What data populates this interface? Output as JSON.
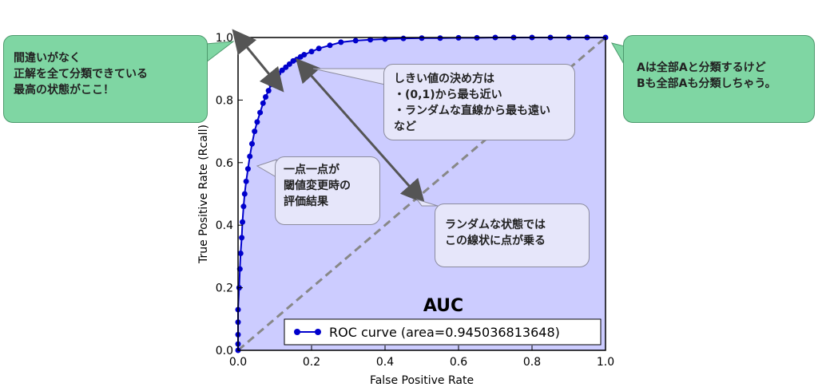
{
  "chart_data": {
    "type": "line",
    "title": "AUC",
    "xlabel": "False Positive Rate",
    "ylabel": "True Positive Rate (Rcall)",
    "xlim": [
      0.0,
      1.0
    ],
    "ylim": [
      0.0,
      1.0
    ],
    "xticks": [
      "0.0",
      "0.2",
      "0.4",
      "0.6",
      "0.8",
      "1.0"
    ],
    "yticks": [
      "0.0",
      "0.2",
      "0.4",
      "0.6",
      "0.8",
      "1.0"
    ],
    "grid": false,
    "legend_position": "lower-right",
    "series": [
      {
        "name": "ROC curve (area=0.945036813648)",
        "color": "#0000cc",
        "x": [
          0.0,
          0.0,
          0.0,
          0.0,
          0.0,
          0.003,
          0.005,
          0.007,
          0.01,
          0.012,
          0.015,
          0.018,
          0.022,
          0.027,
          0.032,
          0.038,
          0.045,
          0.052,
          0.06,
          0.068,
          0.075,
          0.083,
          0.09,
          0.1,
          0.11,
          0.12,
          0.13,
          0.14,
          0.15,
          0.16,
          0.17,
          0.18,
          0.2,
          0.22,
          0.25,
          0.28,
          0.32,
          0.36,
          0.4,
          0.45,
          0.5,
          0.55,
          0.6,
          0.65,
          0.7,
          0.75,
          0.8,
          0.85,
          0.9,
          0.95,
          1.0
        ],
        "y": [
          0.0,
          0.02,
          0.05,
          0.09,
          0.13,
          0.2,
          0.26,
          0.31,
          0.36,
          0.41,
          0.46,
          0.5,
          0.54,
          0.58,
          0.62,
          0.66,
          0.7,
          0.73,
          0.76,
          0.79,
          0.81,
          0.83,
          0.85,
          0.87,
          0.885,
          0.895,
          0.905,
          0.915,
          0.925,
          0.93,
          0.938,
          0.945,
          0.955,
          0.965,
          0.975,
          0.985,
          0.99,
          0.993,
          0.995,
          0.997,
          0.998,
          0.998,
          0.999,
          0.999,
          1.0,
          1.0,
          1.0,
          1.0,
          1.0,
          1.0,
          1.0
        ]
      }
    ]
  },
  "callouts": {
    "best": "間違いがなく\n正解を全て分類できている\n最高の状態がここ！",
    "all_a": "Aは全部Aと分類するけど\nBも全部Aも分類しちゃう。",
    "threshold": "しきい値の決め方は\n・(0,1)から最も近い\n・ランダムな直線から最も遠い\nなど",
    "point": "一点一点が\n閾値変更時の\n評価結果",
    "random": "ランダムな状態では\nこの線状に点が乗る"
  },
  "colors": {
    "fill": "#ccccff",
    "diagonal": "#888888",
    "arrow": "#555555",
    "callout_green": "#7fd6a3",
    "callout_lavender": "#e6e6fa"
  }
}
